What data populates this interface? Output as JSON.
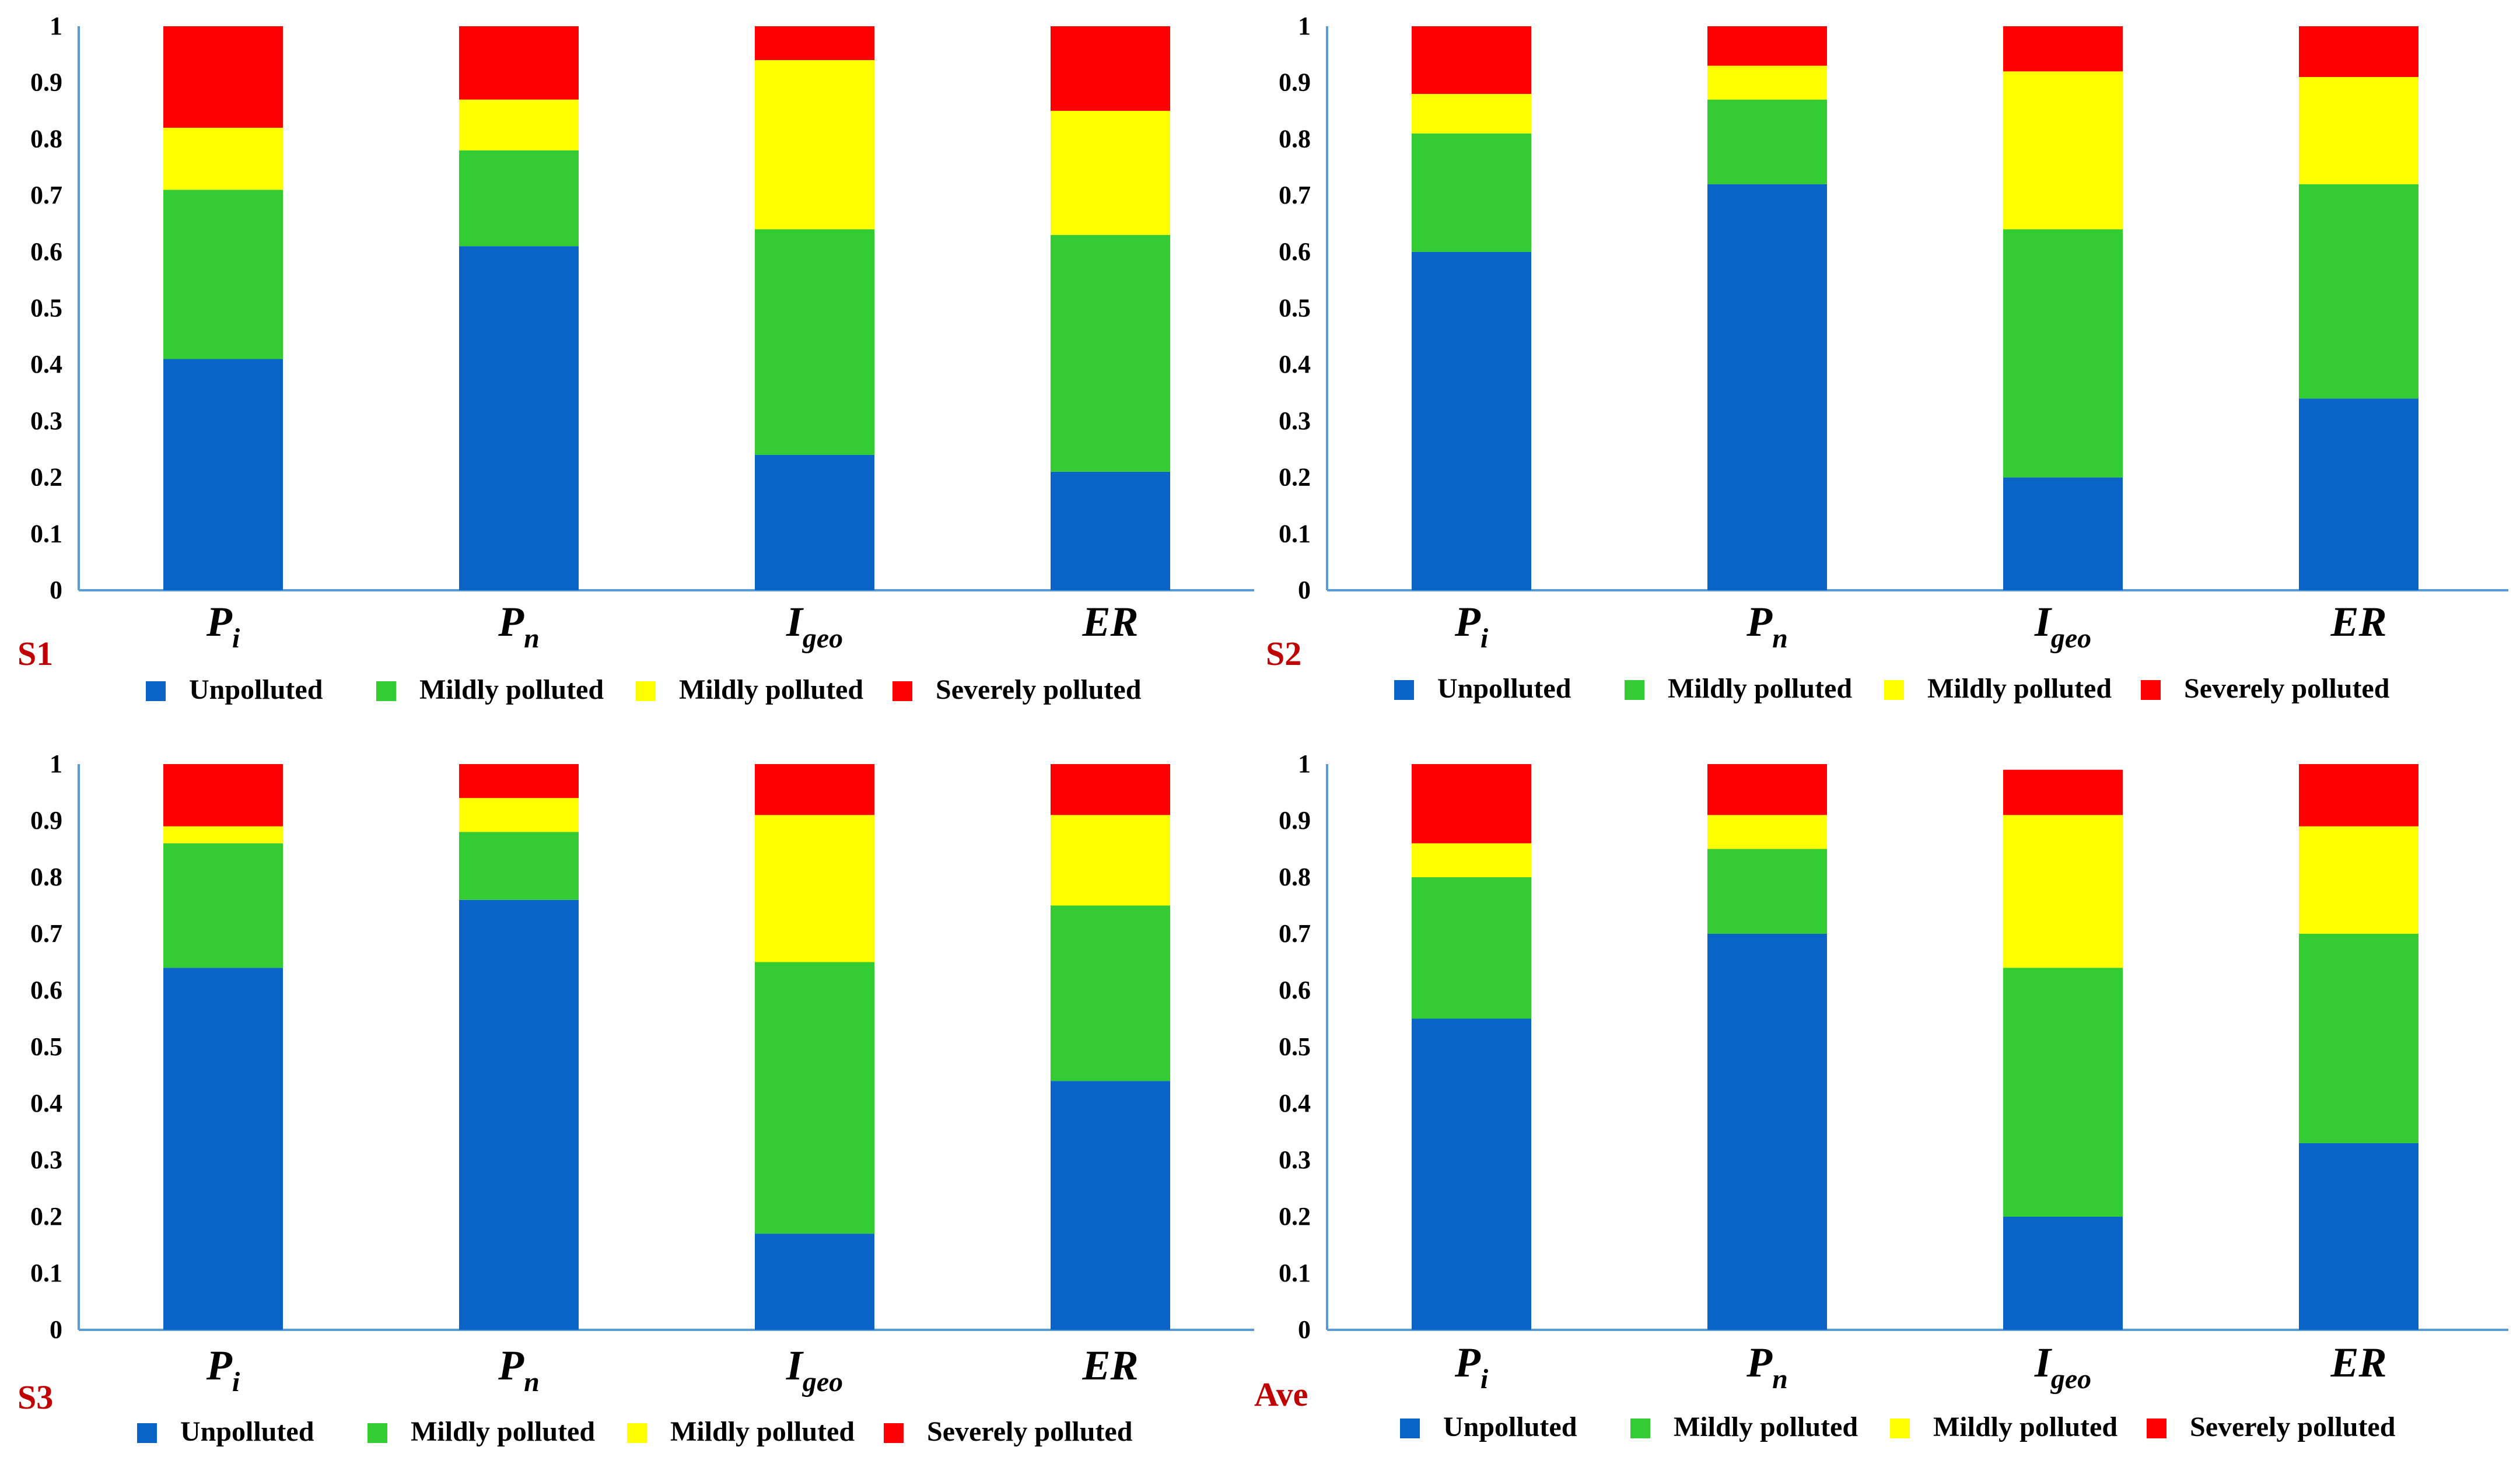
{
  "legend_labels": [
    "Unpolluted",
    "Mildly polluted",
    "Mildly polluted",
    "Severely polluted"
  ],
  "colors": {
    "unpolluted": "#0A64C8",
    "mild_green": "#33CC33",
    "mild_yellow": "#FFFF00",
    "severe": "#FF0000",
    "axis": "#5B9BD5",
    "panel_label": "#C00000"
  },
  "chart_data": [
    {
      "type": "bar",
      "stacked": true,
      "panel_label": "S1",
      "categories": [
        {
          "main": "P",
          "sub": "i"
        },
        {
          "main": "P",
          "sub": "n"
        },
        {
          "main": "I",
          "sub": "geo"
        },
        {
          "main": "ER",
          "sub": ""
        }
      ],
      "yticks": [
        "0",
        "0.1",
        "0.2",
        "0.3",
        "0.4",
        "0.5",
        "0.6",
        "0.7",
        "0.8",
        "0.9",
        "1"
      ],
      "ylim": [
        0,
        1
      ],
      "series": [
        {
          "name": "Unpolluted",
          "values": [
            0.41,
            0.61,
            0.24,
            0.21
          ]
        },
        {
          "name": "Mildly polluted",
          "values": [
            0.3,
            0.17,
            0.4,
            0.42
          ]
        },
        {
          "name": "Mildly polluted",
          "values": [
            0.11,
            0.09,
            0.3,
            0.22
          ]
        },
        {
          "name": "Severely polluted",
          "values": [
            0.18,
            0.13,
            0.06,
            0.15
          ]
        }
      ]
    },
    {
      "type": "bar",
      "stacked": true,
      "panel_label": "S2",
      "categories": [
        {
          "main": "P",
          "sub": "i"
        },
        {
          "main": "P",
          "sub": "n"
        },
        {
          "main": "I",
          "sub": "geo"
        },
        {
          "main": "ER",
          "sub": ""
        }
      ],
      "yticks": [
        "0",
        "0.1",
        "0.2",
        "0.3",
        "0.4",
        "0.5",
        "0.6",
        "0.7",
        "0.8",
        "0.9",
        "1"
      ],
      "ylim": [
        0,
        1
      ],
      "series": [
        {
          "name": "Unpolluted",
          "values": [
            0.6,
            0.72,
            0.2,
            0.34
          ]
        },
        {
          "name": "Mildly polluted",
          "values": [
            0.21,
            0.15,
            0.44,
            0.38
          ]
        },
        {
          "name": "Mildly polluted",
          "values": [
            0.07,
            0.06,
            0.28,
            0.19
          ]
        },
        {
          "name": "Severely polluted",
          "values": [
            0.12,
            0.07,
            0.08,
            0.09
          ]
        }
      ]
    },
    {
      "type": "bar",
      "stacked": true,
      "panel_label": "S3",
      "categories": [
        {
          "main": "P",
          "sub": "i"
        },
        {
          "main": "P",
          "sub": "n"
        },
        {
          "main": "I",
          "sub": "geo"
        },
        {
          "main": "ER",
          "sub": ""
        }
      ],
      "yticks": [
        "0",
        "0.1",
        "0.2",
        "0.3",
        "0.4",
        "0.5",
        "0.6",
        "0.7",
        "0.8",
        "0.9",
        "1"
      ],
      "ylim": [
        0,
        1
      ],
      "series": [
        {
          "name": "Unpolluted",
          "values": [
            0.64,
            0.76,
            0.17,
            0.44
          ]
        },
        {
          "name": "Mildly polluted",
          "values": [
            0.22,
            0.12,
            0.48,
            0.31
          ]
        },
        {
          "name": "Mildly polluted",
          "values": [
            0.03,
            0.06,
            0.26,
            0.16
          ]
        },
        {
          "name": "Severely polluted",
          "values": [
            0.11,
            0.06,
            0.09,
            0.09
          ]
        }
      ]
    },
    {
      "type": "bar",
      "stacked": true,
      "panel_label": "Ave",
      "categories": [
        {
          "main": "P",
          "sub": "i"
        },
        {
          "main": "P",
          "sub": "n"
        },
        {
          "main": "I",
          "sub": "geo"
        },
        {
          "main": "ER",
          "sub": ""
        }
      ],
      "yticks": [
        "0",
        "0.1",
        "0.2",
        "0.3",
        "0.4",
        "0.5",
        "0.6",
        "0.7",
        "0.8",
        "0.9",
        "1"
      ],
      "ylim": [
        0,
        1
      ],
      "series": [
        {
          "name": "Unpolluted",
          "values": [
            0.55,
            0.7,
            0.2,
            0.33
          ]
        },
        {
          "name": "Mildly polluted",
          "values": [
            0.25,
            0.15,
            0.44,
            0.37
          ]
        },
        {
          "name": "Mildly polluted",
          "values": [
            0.06,
            0.06,
            0.27,
            0.19
          ]
        },
        {
          "name": "Severely polluted",
          "values": [
            0.14,
            0.09,
            0.08,
            0.11
          ]
        }
      ]
    }
  ]
}
